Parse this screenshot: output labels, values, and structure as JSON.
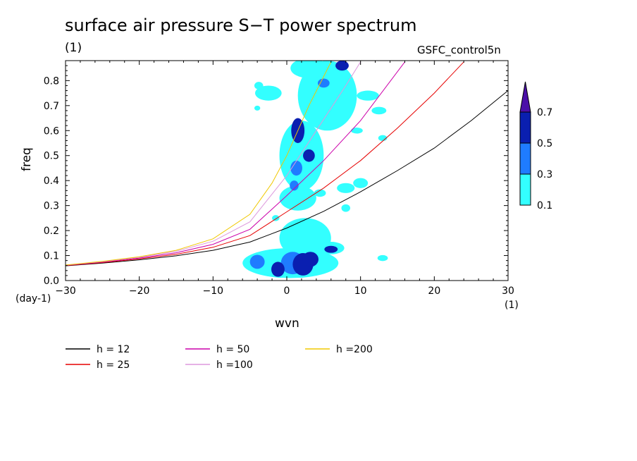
{
  "chart_data": {
    "type": "heatmap",
    "title": "surface air pressure S−T power spectrum",
    "unit_label": "(1)",
    "source_label": "GSFC_control5n",
    "xlabel": "wvn",
    "ylabel": "freq",
    "x_unit": "(1)",
    "y_unit": "(day-1)",
    "xlim": [
      -30,
      30
    ],
    "ylim": [
      0,
      0.88
    ],
    "x_ticks": [
      "-30",
      "-20",
      "-10",
      "0",
      "10",
      "20",
      "30"
    ],
    "y_ticks": [
      "0.0",
      "0.1",
      "0.2",
      "0.3",
      "0.4",
      "0.5",
      "0.6",
      "0.7",
      "0.8"
    ],
    "colorbar": {
      "levels": [
        "0.1",
        "0.3",
        "0.5",
        "0.7"
      ],
      "colors": [
        "#33ffff",
        "#1f7cff",
        "#0a1fb0",
        "#4b0fa8"
      ]
    },
    "contours": [
      {
        "x": 2.2,
        "y": 0.065,
        "rx": 1.4,
        "ry": 0.045,
        "level": 3
      },
      {
        "x": 3.2,
        "y": 0.085,
        "rx": 1.1,
        "ry": 0.03,
        "level": 3
      },
      {
        "x": -1.2,
        "y": 0.045,
        "rx": 0.9,
        "ry": 0.03,
        "level": 3
      },
      {
        "x": 0.8,
        "y": 0.07,
        "rx": 1.6,
        "ry": 0.045,
        "level": 2
      },
      {
        "x": -4,
        "y": 0.075,
        "rx": 1.0,
        "ry": 0.028,
        "level": 2
      },
      {
        "x": 6,
        "y": 0.125,
        "rx": 0.9,
        "ry": 0.014,
        "level": 3
      },
      {
        "x": 1.5,
        "y": 0.6,
        "rx": 0.9,
        "ry": 0.05,
        "level": 3
      },
      {
        "x": 3.0,
        "y": 0.5,
        "rx": 0.8,
        "ry": 0.025,
        "level": 3
      },
      {
        "x": 1.3,
        "y": 0.45,
        "rx": 0.8,
        "ry": 0.03,
        "level": 2
      },
      {
        "x": 5.0,
        "y": 0.79,
        "rx": 0.8,
        "ry": 0.018,
        "level": 2
      },
      {
        "x": 7.5,
        "y": 0.86,
        "rx": 0.9,
        "ry": 0.02,
        "level": 3
      },
      {
        "x": 1.0,
        "y": 0.38,
        "rx": 0.6,
        "ry": 0.02,
        "level": 2
      },
      {
        "x": 0.5,
        "y": 0.07,
        "rx": 6.5,
        "ry": 0.06,
        "level": 1
      },
      {
        "x": 2.5,
        "y": 0.17,
        "rx": 3.5,
        "ry": 0.08,
        "level": 1
      },
      {
        "x": 6,
        "y": 0.13,
        "rx": 1.8,
        "ry": 0.025,
        "level": 1
      },
      {
        "x": 1.5,
        "y": 0.33,
        "rx": 2.5,
        "ry": 0.05,
        "level": 1
      },
      {
        "x": 2.0,
        "y": 0.5,
        "rx": 3.0,
        "ry": 0.14,
        "level": 1
      },
      {
        "x": 5.5,
        "y": 0.74,
        "rx": 4.0,
        "ry": 0.14,
        "level": 1
      },
      {
        "x": 3.0,
        "y": 0.85,
        "rx": 2.5,
        "ry": 0.04,
        "level": 1
      },
      {
        "x": -2.5,
        "y": 0.75,
        "rx": 1.8,
        "ry": 0.03,
        "level": 1
      },
      {
        "x": -3.8,
        "y": 0.78,
        "rx": 0.6,
        "ry": 0.015,
        "level": 1
      },
      {
        "x": 8.0,
        "y": 0.37,
        "rx": 1.2,
        "ry": 0.02,
        "level": 1
      },
      {
        "x": 10.0,
        "y": 0.39,
        "rx": 1.0,
        "ry": 0.02,
        "level": 1
      },
      {
        "x": 8.0,
        "y": 0.29,
        "rx": 0.6,
        "ry": 0.015,
        "level": 1
      },
      {
        "x": 11.0,
        "y": 0.74,
        "rx": 1.5,
        "ry": 0.02,
        "level": 1
      },
      {
        "x": 12.5,
        "y": 0.68,
        "rx": 1.0,
        "ry": 0.015,
        "level": 1
      },
      {
        "x": 13.0,
        "y": 0.57,
        "rx": 0.6,
        "ry": 0.012,
        "level": 1
      },
      {
        "x": -1.5,
        "y": 0.25,
        "rx": 0.5,
        "ry": 0.012,
        "level": 1
      },
      {
        "x": -4.0,
        "y": 0.69,
        "rx": 0.4,
        "ry": 0.01,
        "level": 1
      },
      {
        "x": 9.5,
        "y": 0.6,
        "rx": 0.8,
        "ry": 0.012,
        "level": 1
      },
      {
        "x": 13.0,
        "y": 0.09,
        "rx": 0.7,
        "ry": 0.012,
        "level": 1
      },
      {
        "x": 4.5,
        "y": 0.35,
        "rx": 0.8,
        "ry": 0.015,
        "level": 1
      }
    ],
    "series": [
      {
        "name": "h = 12",
        "color": "#000000",
        "x": [
          -30,
          -25,
          -20,
          -15,
          -10,
          -5,
          0,
          5,
          10,
          15,
          20,
          25,
          30
        ],
        "y": [
          0.059,
          0.07,
          0.083,
          0.099,
          0.121,
          0.154,
          0.21,
          0.277,
          0.355,
          0.44,
          0.53,
          0.64,
          0.76
        ]
      },
      {
        "name": "h = 25",
        "color": "#e60000",
        "x": [
          -30,
          -25,
          -20,
          -15,
          -10,
          -5,
          0,
          5,
          10,
          15,
          20,
          24
        ],
        "y": [
          0.06,
          0.072,
          0.087,
          0.105,
          0.133,
          0.18,
          0.275,
          0.37,
          0.48,
          0.61,
          0.75,
          0.875
        ]
      },
      {
        "name": "h = 50",
        "color": "#cc00aa",
        "x": [
          -30,
          -25,
          -20,
          -15,
          -10,
          -5,
          0,
          5,
          10,
          16
        ],
        "y": [
          0.061,
          0.074,
          0.09,
          0.111,
          0.145,
          0.205,
          0.34,
          0.48,
          0.64,
          0.875
        ]
      },
      {
        "name": "h =100",
        "color": "#dd99dd",
        "x": [
          -30,
          -25,
          -20,
          -15,
          -10,
          -5,
          0,
          4,
          8,
          10
        ],
        "y": [
          0.062,
          0.076,
          0.093,
          0.117,
          0.157,
          0.235,
          0.42,
          0.6,
          0.78,
          0.875
        ]
      },
      {
        "name": "h =200",
        "color": "#f0c800",
        "x": [
          -30,
          -25,
          -20,
          -15,
          -10,
          -5,
          -2,
          0,
          3,
          6
        ],
        "y": [
          0.062,
          0.077,
          0.095,
          0.121,
          0.167,
          0.265,
          0.39,
          0.5,
          0.7,
          0.875
        ]
      }
    ]
  }
}
